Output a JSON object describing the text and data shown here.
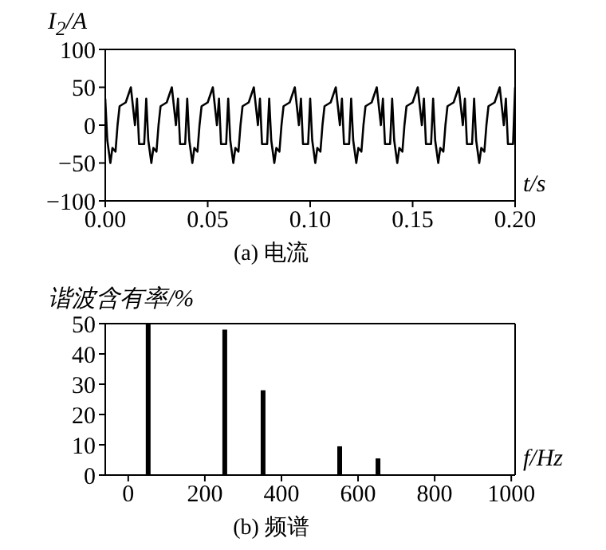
{
  "chart_data": [
    {
      "type": "line",
      "title": "(a) 电流",
      "xlabel": "t/s",
      "ylabel": "I$_{2}$/A",
      "color": "#000000",
      "marker": "none",
      "line_style": "solid",
      "grid": false,
      "legend": false,
      "x": [
        0,
        0.001,
        0.0025,
        0.0035,
        0.005,
        0.006,
        0.007,
        0.01,
        0.0125,
        0.0145,
        0.0155,
        0.0165,
        0.019,
        0.02,
        0.021,
        0.0225,
        0.0235,
        0.025,
        0.026,
        0.027,
        0.03,
        0.0325,
        0.0345,
        0.0355,
        0.0365,
        0.039,
        0.04,
        0.041,
        0.0425,
        0.0435,
        0.045,
        0.046,
        0.047,
        0.05,
        0.0525,
        0.0545,
        0.0555,
        0.0565,
        0.059,
        0.06,
        0.061,
        0.0625,
        0.0635,
        0.065,
        0.066,
        0.067,
        0.07,
        0.0725,
        0.0745,
        0.0755,
        0.0765,
        0.079,
        0.08,
        0.081,
        0.0825,
        0.0835,
        0.085,
        0.086,
        0.087,
        0.09,
        0.0925,
        0.0945,
        0.0955,
        0.0965,
        0.099,
        0.1,
        0.101,
        0.1025,
        0.1035,
        0.105,
        0.106,
        0.107,
        0.11,
        0.1125,
        0.1145,
        0.1155,
        0.1165,
        0.119,
        0.12,
        0.121,
        0.1225,
        0.1235,
        0.125,
        0.126,
        0.127,
        0.13,
        0.1325,
        0.1345,
        0.1355,
        0.1365,
        0.139,
        0.14,
        0.141,
        0.1425,
        0.1435,
        0.145,
        0.146,
        0.147,
        0.15,
        0.1525,
        0.1545,
        0.1555,
        0.1565,
        0.159,
        0.16,
        0.161,
        0.1625,
        0.1635,
        0.165,
        0.166,
        0.167,
        0.17,
        0.1725,
        0.1745,
        0.1755,
        0.1765,
        0.179,
        0.18,
        0.181,
        0.1825,
        0.1835,
        0.185,
        0.186,
        0.187,
        0.19,
        0.1925,
        0.1945,
        0.1955,
        0.1965,
        0.199,
        0.2
      ],
      "values": [
        35,
        -20,
        -50,
        -30,
        -35,
        0,
        25,
        30,
        50,
        0,
        35,
        -25,
        -25,
        35,
        -20,
        -50,
        -30,
        -35,
        0,
        25,
        30,
        50,
        0,
        35,
        -25,
        -25,
        35,
        -20,
        -50,
        -30,
        -35,
        0,
        25,
        30,
        50,
        0,
        35,
        -25,
        -25,
        35,
        -20,
        -50,
        -30,
        -35,
        0,
        25,
        30,
        50,
        0,
        35,
        -25,
        -25,
        35,
        -20,
        -50,
        -30,
        -35,
        0,
        25,
        30,
        50,
        0,
        35,
        -25,
        -25,
        35,
        -20,
        -50,
        -30,
        -35,
        0,
        25,
        30,
        50,
        0,
        35,
        -25,
        -25,
        35,
        -20,
        -50,
        -30,
        -35,
        0,
        25,
        30,
        50,
        0,
        35,
        -25,
        -25,
        35,
        -20,
        -50,
        -30,
        -35,
        0,
        25,
        30,
        50,
        0,
        35,
        -25,
        -25,
        35,
        -20,
        -50,
        -30,
        -35,
        0,
        25,
        30,
        50,
        0,
        35,
        -25,
        -25,
        35,
        -20,
        -50,
        -30,
        -35,
        0,
        25,
        30,
        50,
        0,
        35,
        -25,
        -25,
        50
      ],
      "xlim": [
        0,
        0.2
      ],
      "xticks": [
        {
          "value": 0,
          "label": "0.00"
        },
        {
          "value": 0.05,
          "label": "0.05"
        },
        {
          "value": 0.1,
          "label": "0.10"
        },
        {
          "value": 0.15,
          "label": "0.15"
        },
        {
          "value": 0.2,
          "label": "0.20"
        }
      ],
      "ylim": [
        -100,
        100
      ],
      "yticks": [
        -100,
        -50,
        0,
        50,
        100
      ]
    },
    {
      "type": "bar",
      "title": "(b) 频谱",
      "xlabel": "f/Hz",
      "ylabel": "谐波含有率/%",
      "color": "#000000",
      "grid": false,
      "legend": false,
      "x": [
        50,
        250,
        350,
        550,
        650
      ],
      "values": [
        50,
        48,
        28,
        9.5,
        5.5
      ],
      "xlim": [
        -60,
        1010
      ],
      "xticks": [
        0,
        200,
        400,
        600,
        800,
        1000
      ],
      "ylim": [
        0,
        50
      ],
      "yticks": [
        0,
        10,
        20,
        30,
        40,
        50
      ]
    }
  ]
}
